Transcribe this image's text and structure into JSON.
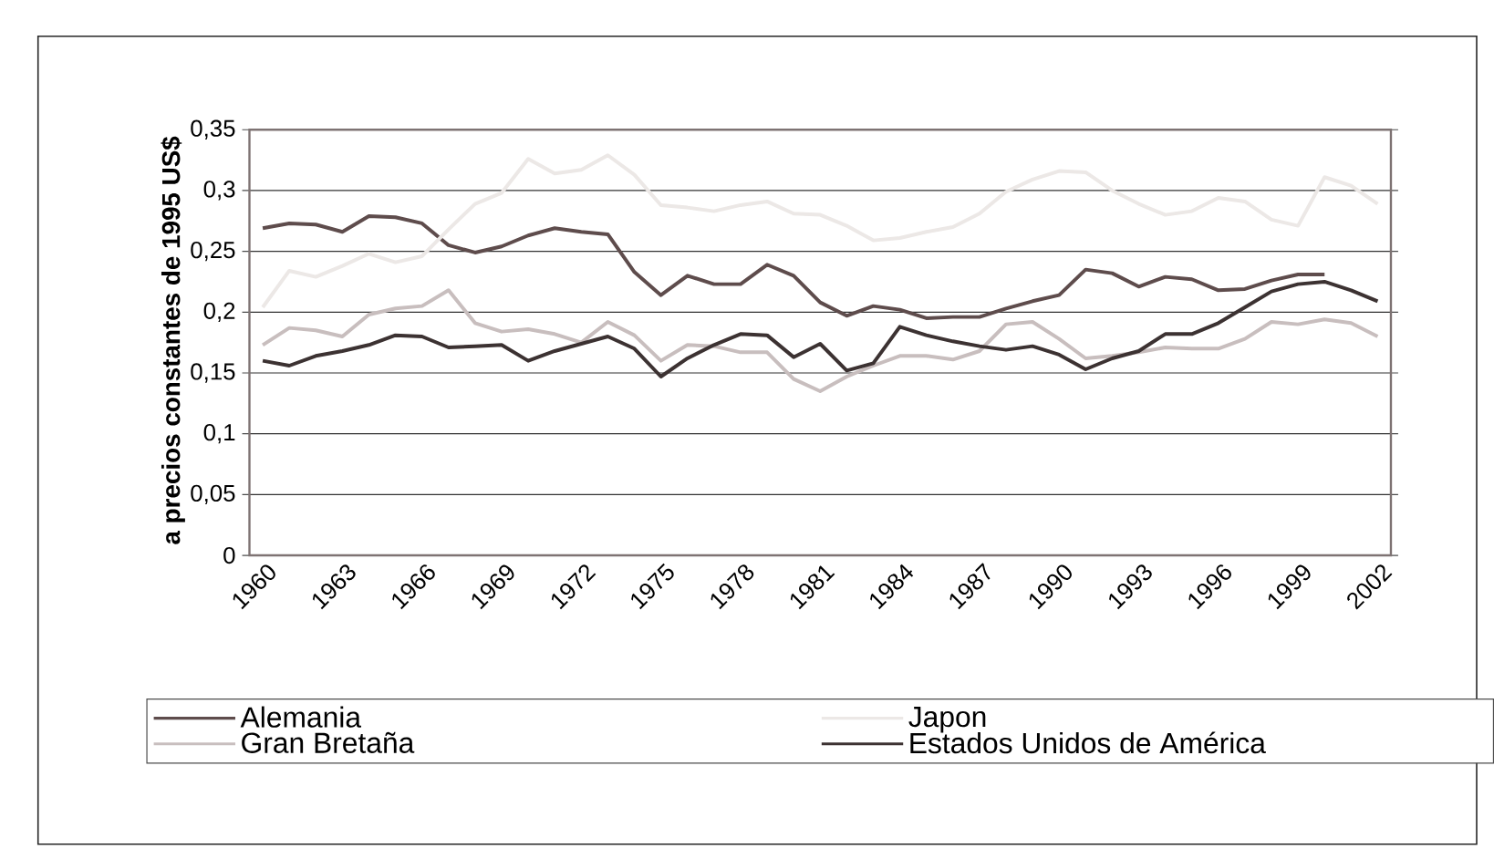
{
  "chart_data": {
    "type": "line",
    "ylabel": "a precios constantes de 1995 US$",
    "categories": [
      "1960",
      null,
      null,
      "1963",
      null,
      null,
      "1966",
      null,
      null,
      "1969",
      null,
      null,
      "1972",
      null,
      null,
      "1975",
      null,
      null,
      "1978",
      null,
      null,
      "1981",
      null,
      null,
      "1984",
      null,
      null,
      "1987",
      null,
      null,
      "1990",
      null,
      null,
      "1993",
      null,
      null,
      "1996",
      null,
      null,
      "1999",
      null,
      null,
      "2002"
    ],
    "series": [
      {
        "name": "Alemania",
        "color": "#5e4c4c",
        "values": [
          0.269,
          0.273,
          0.272,
          0.266,
          0.279,
          0.278,
          0.273,
          0.255,
          0.249,
          0.254,
          0.263,
          0.269,
          0.266,
          0.264,
          0.233,
          0.214,
          0.23,
          0.223,
          0.223,
          0.239,
          0.23,
          0.208,
          0.197,
          0.205,
          0.202,
          0.195,
          0.196,
          0.196,
          0.203,
          0.209,
          0.214,
          0.235,
          0.232,
          0.221,
          0.229,
          0.227,
          0.218,
          0.219,
          0.226,
          0.231,
          0.231,
          null,
          null
        ]
      },
      {
        "name": "Japon",
        "color": "#ece8e6",
        "values": [
          0.204,
          0.234,
          0.229,
          0.238,
          0.248,
          0.241,
          0.246,
          0.268,
          0.289,
          0.298,
          0.326,
          0.314,
          0.317,
          0.329,
          0.313,
          0.288,
          0.286,
          0.283,
          0.288,
          0.291,
          0.281,
          0.28,
          0.271,
          0.259,
          0.261,
          0.266,
          0.27,
          0.281,
          0.299,
          0.309,
          0.316,
          0.315,
          0.3,
          0.289,
          0.28,
          0.283,
          0.294,
          0.291,
          0.276,
          0.271,
          0.311,
          0.304,
          0.289
        ]
      },
      {
        "name": "Gran Bretaña",
        "color": "#c8bebe",
        "values": [
          0.173,
          0.187,
          0.185,
          0.18,
          0.198,
          0.203,
          0.205,
          0.218,
          0.191,
          0.184,
          0.186,
          0.182,
          0.175,
          0.192,
          0.181,
          0.16,
          0.173,
          0.172,
          0.167,
          0.167,
          0.145,
          0.135,
          0.147,
          0.156,
          0.164,
          0.164,
          0.161,
          0.168,
          0.19,
          0.192,
          0.178,
          0.162,
          0.164,
          0.167,
          0.171,
          0.17,
          0.17,
          0.178,
          0.192,
          0.19,
          0.194,
          0.191,
          0.18
        ]
      },
      {
        "name": "Estados Unidos de América",
        "color": "#3c3232",
        "values": [
          0.16,
          0.156,
          0.164,
          0.168,
          0.173,
          0.181,
          0.18,
          0.171,
          0.172,
          0.173,
          0.16,
          0.168,
          0.174,
          0.18,
          0.17,
          0.147,
          0.162,
          0.173,
          0.182,
          0.181,
          0.163,
          0.174,
          0.152,
          0.158,
          0.188,
          0.181,
          0.176,
          0.172,
          0.169,
          0.172,
          0.165,
          0.153,
          0.162,
          0.168,
          0.182,
          0.182,
          0.191,
          0.204,
          0.217,
          0.223,
          0.225,
          0.218,
          0.209
        ]
      }
    ],
    "ylim": [
      0,
      0.35
    ],
    "yticks": [
      0,
      {
        "value": 0.05,
        "label": "0,05"
      },
      {
        "value": 0.1,
        "label": "0,1"
      },
      {
        "value": 0.15,
        "label": "0,15"
      },
      {
        "value": 0.2,
        "label": "0,2"
      },
      {
        "value": 0.25,
        "label": "0,25"
      },
      {
        "value": 0.3,
        "label": "0,3"
      },
      {
        "value": 0.35,
        "label": "0,35"
      }
    ],
    "grid": "y",
    "legend": "bottom"
  }
}
